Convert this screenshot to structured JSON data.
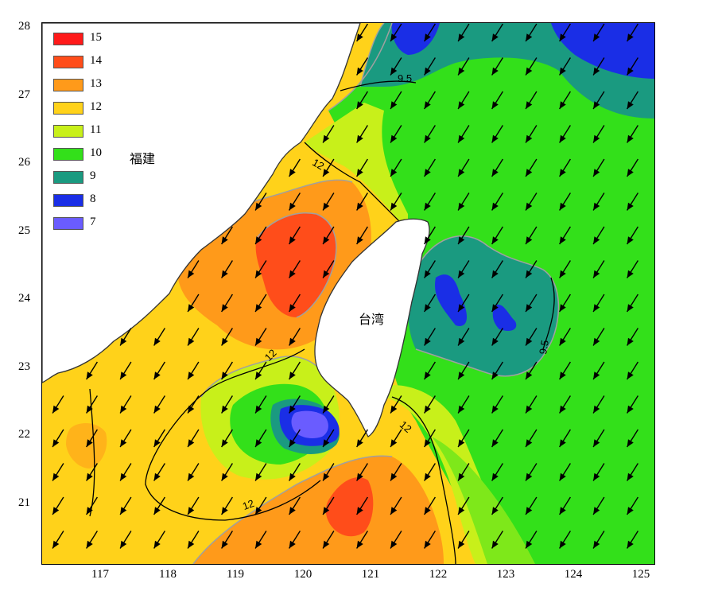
{
  "map": {
    "y_ticks": [
      "28",
      "27",
      "26",
      "25",
      "24",
      "23",
      "22",
      "21"
    ],
    "x_ticks": [
      "117",
      "118",
      "119",
      "120",
      "121",
      "122",
      "123",
      "124",
      "125"
    ],
    "legend": [
      {
        "label": "15",
        "color": "#ff1a1a"
      },
      {
        "label": "14",
        "color": "#ff4d1a"
      },
      {
        "label": "13",
        "color": "#ff9a1a"
      },
      {
        "label": "12",
        "color": "#ffd21a"
      },
      {
        "label": "11",
        "color": "#c8f01a"
      },
      {
        "label": "10",
        "color": "#33e01a"
      },
      {
        "label": "9",
        "color": "#1a9a80"
      },
      {
        "label": "8",
        "color": "#1a2ee6"
      },
      {
        "label": "7",
        "color": "#6a5cff"
      }
    ],
    "places": {
      "fujian": "福建",
      "taiwan": "台湾"
    },
    "contour_labels": {
      "north": "9.5",
      "east": "9.5",
      "strait": "12",
      "south_west": "12",
      "south_east": "12",
      "sw_inner": "12"
    },
    "colors": {
      "land": "#ffffff",
      "coast": "#333333",
      "arrow": "#000000",
      "contour_line": "#000000",
      "level_line": "#a0a0a0"
    },
    "wind_direction": "north-east wind (arrows point to south-west)"
  }
}
